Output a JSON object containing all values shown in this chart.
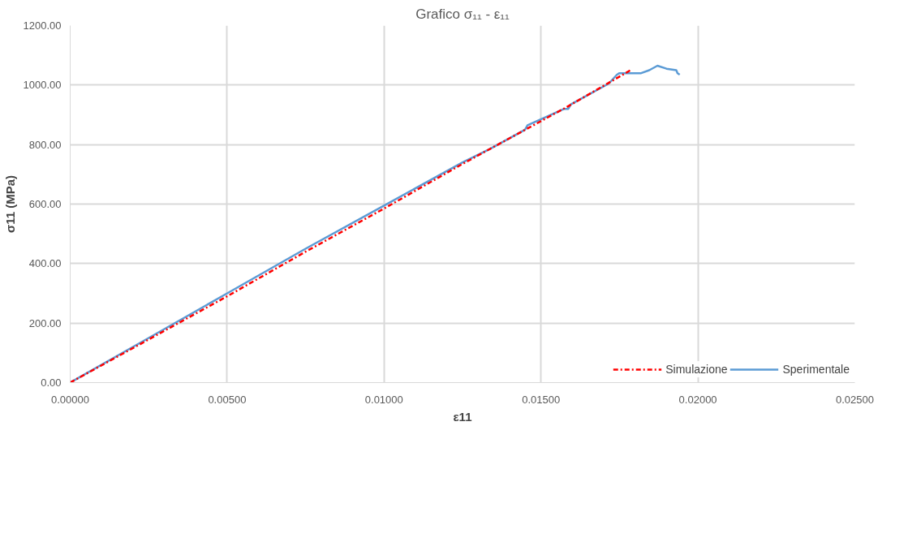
{
  "chart_data": {
    "type": "line",
    "title": "Grafico σ₁₁ - ε₁₁",
    "xlabel": "ε11",
    "ylabel": "σ11 (MPa)",
    "xlim": [
      0,
      0.025
    ],
    "ylim": [
      0,
      1200
    ],
    "xticks": [
      {
        "value": 0,
        "label": "0.00000"
      },
      {
        "value": 0.005,
        "label": "0.00500"
      },
      {
        "value": 0.01,
        "label": "0.01000"
      },
      {
        "value": 0.015,
        "label": "0.01500"
      },
      {
        "value": 0.02,
        "label": "0.02000"
      },
      {
        "value": 0.025,
        "label": "0.02500"
      }
    ],
    "yticks": [
      {
        "value": 0,
        "label": "0.00"
      },
      {
        "value": 200,
        "label": "200.00"
      },
      {
        "value": 400,
        "label": "400.00"
      },
      {
        "value": 600,
        "label": "600.00"
      },
      {
        "value": 800,
        "label": "800.00"
      },
      {
        "value": 1000,
        "label": "1000.00"
      },
      {
        "value": 1200,
        "label": "1200.00"
      }
    ],
    "grid": true,
    "legend": "bottom right",
    "series": [
      {
        "name": "Simulazione",
        "color": "#ff0000",
        "line_style": "dashed",
        "x": [
          0,
          0.0025,
          0.005,
          0.0075,
          0.01,
          0.0125,
          0.0145,
          0.0158,
          0.0172,
          0.01785
        ],
        "values": [
          0,
          145,
          290,
          440,
          585,
          735,
          850,
          925,
          1010,
          1050
        ]
      },
      {
        "name": "Sperimentale",
        "color": "#5b9bd5",
        "line_style": "solid",
        "x": [
          0,
          0.0025,
          0.005,
          0.0075,
          0.01,
          0.0125,
          0.01337,
          0.01449,
          0.01457,
          0.01574,
          0.01587,
          0.01595,
          0.01716,
          0.01742,
          0.0175,
          0.01819,
          0.01845,
          0.01871,
          0.019,
          0.01931,
          0.01935,
          0.01942
        ],
        "values": [
          0,
          150,
          300,
          450,
          595,
          740,
          785,
          850,
          865,
          920,
          920,
          935,
          1005,
          1035,
          1040,
          1040,
          1050,
          1065,
          1055,
          1050,
          1040,
          1035
        ]
      }
    ]
  }
}
